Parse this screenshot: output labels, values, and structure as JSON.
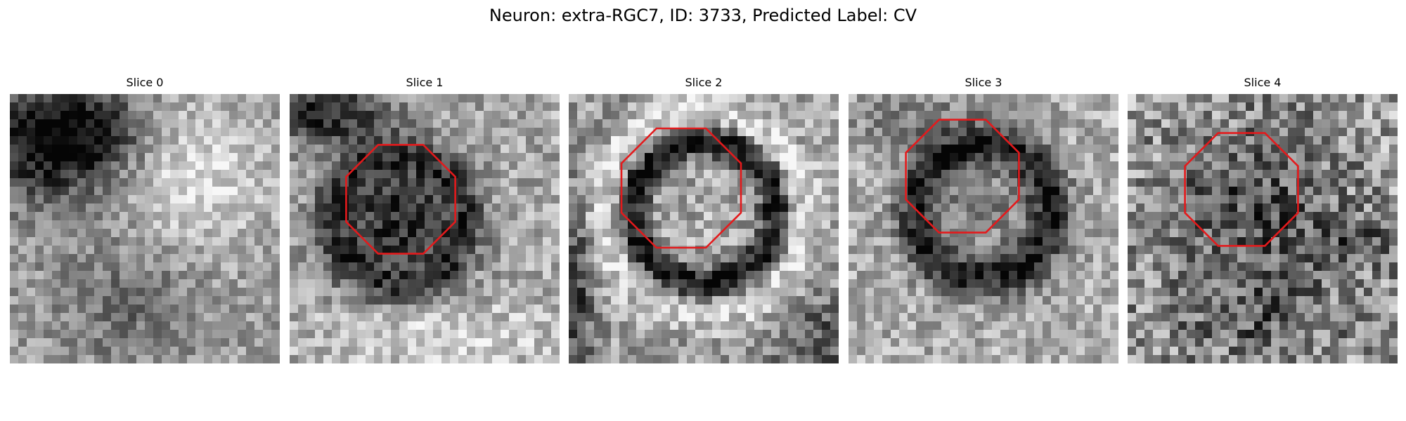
{
  "figure": {
    "title": "Neuron: extra-RGC7, ID: 3733, Predicted Label: CV",
    "contour_color": "#e31a1c",
    "colormap": "gray"
  },
  "panels": [
    {
      "title": "Slice 0",
      "has_contour": false
    },
    {
      "title": "Slice 1",
      "has_contour": true
    },
    {
      "title": "Slice 2",
      "has_contour": true
    },
    {
      "title": "Slice 3",
      "has_contour": true
    },
    {
      "title": "Slice 4",
      "has_contour": true
    }
  ]
}
